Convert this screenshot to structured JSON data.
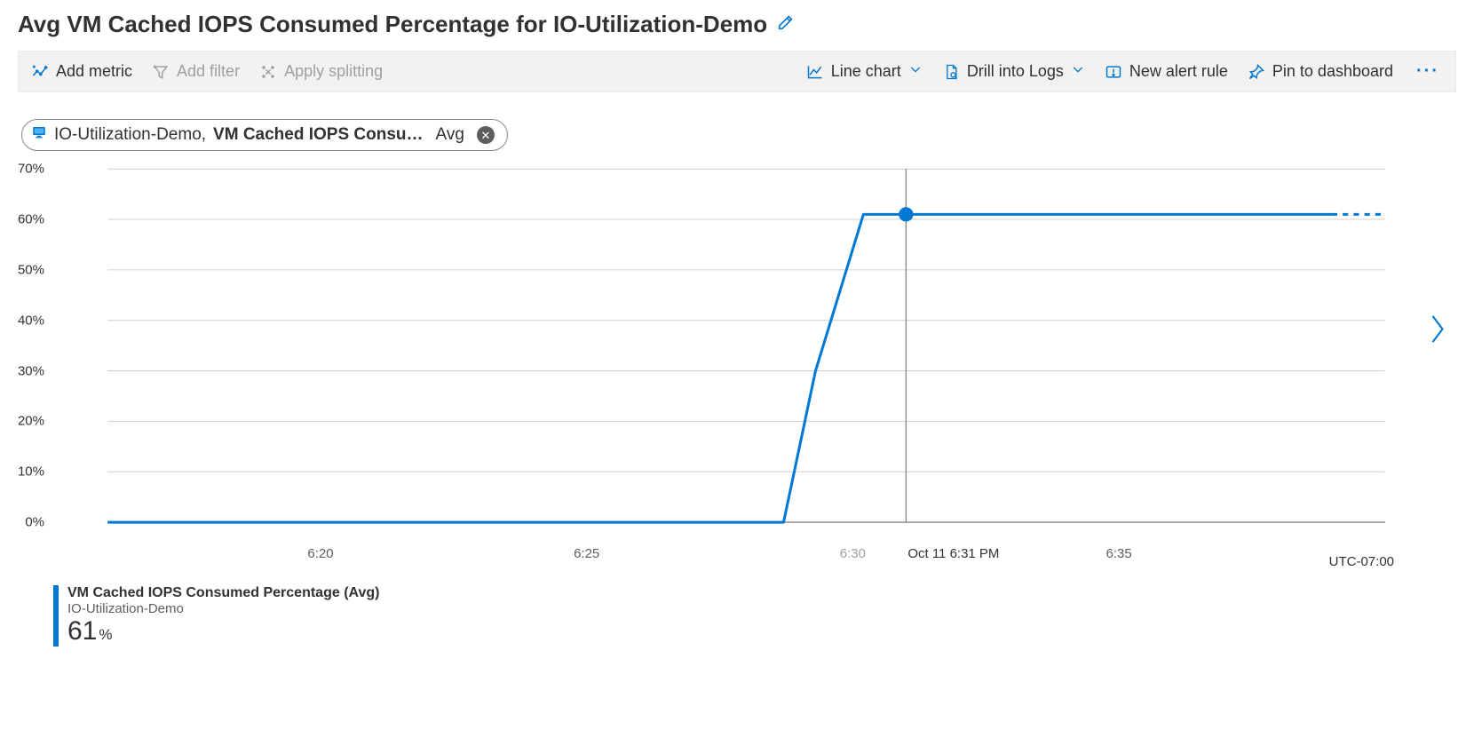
{
  "header": {
    "title": "Avg VM Cached IOPS Consumed Percentage for IO-Utilization-Demo"
  },
  "toolbar": {
    "add_metric": "Add metric",
    "add_filter": "Add filter",
    "apply_splitting": "Apply splitting",
    "chart_type": "Line chart",
    "drill_logs": "Drill into Logs",
    "new_alert": "New alert rule",
    "pin_dashboard": "Pin to dashboard"
  },
  "pill": {
    "resource": "IO-Utilization-Demo,",
    "metric": "VM Cached IOPS Consu…",
    "aggregation": "Avg"
  },
  "chart": {
    "type": "line",
    "series_color": "#0078d4",
    "line_width": 3,
    "grid_color": "#d2d0ce",
    "axis_color": "#8a8886",
    "background_color": "#ffffff",
    "hover_line_color": "#8a8886",
    "marker_radius": 8,
    "ylim": [
      0,
      70
    ],
    "ytick_step": 10,
    "yticks": [
      "0%",
      "10%",
      "20%",
      "30%",
      "40%",
      "50%",
      "60%",
      "70%"
    ],
    "x_min_minutes": 16,
    "x_max_minutes": 40,
    "xticks": [
      {
        "m": 20,
        "label": "6:20"
      },
      {
        "m": 25,
        "label": "6:25"
      },
      {
        "m": 30,
        "label": "6:30",
        "faded": true
      },
      {
        "m": 35,
        "label": "6:35"
      }
    ],
    "hover_point": {
      "m": 31,
      "value": 61,
      "label": "Oct 11 6:31 PM"
    },
    "timezone": "UTC-07:00",
    "data": [
      {
        "m": 16,
        "v": 0
      },
      {
        "m": 28.7,
        "v": 0
      },
      {
        "m": 29.3,
        "v": 30
      },
      {
        "m": 30.2,
        "v": 61
      },
      {
        "m": 39.0,
        "v": 61
      }
    ],
    "dashed_tail": [
      {
        "m": 39.0,
        "v": 61
      },
      {
        "m": 40.0,
        "v": 61
      }
    ]
  },
  "legend": {
    "line1": "VM Cached IOPS Consumed Percentage (Avg)",
    "line2": "IO-Utilization-Demo",
    "value": "61",
    "unit": "%"
  }
}
